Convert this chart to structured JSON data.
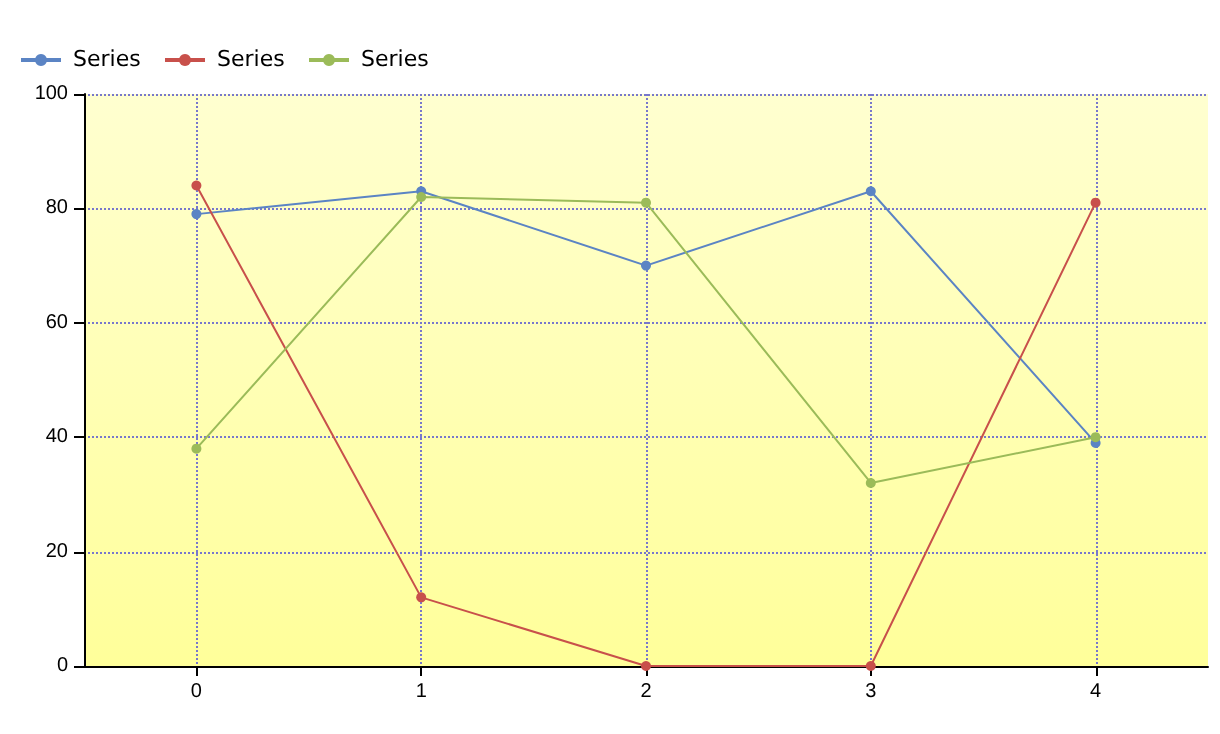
{
  "chart_data": {
    "type": "line",
    "x": [
      0,
      1,
      2,
      3,
      4
    ],
    "series": [
      {
        "name": "Series",
        "color": "#5b84c4",
        "values": [
          79,
          83,
          70,
          83,
          39
        ]
      },
      {
        "name": "Series",
        "color": "#c8504b",
        "values": [
          84,
          12,
          0,
          0,
          81
        ]
      },
      {
        "name": "Series",
        "color": "#9bbb59",
        "values": [
          38,
          82,
          81,
          32,
          40
        ]
      }
    ],
    "xlim": [
      -0.5,
      4.5
    ],
    "xticks": [
      0,
      1,
      2,
      3,
      4
    ],
    "ylim": [
      0,
      100
    ],
    "yticks": [
      0,
      20,
      40,
      60,
      80,
      100
    ],
    "grid": true,
    "legend": "top left",
    "marker": "circle",
    "line_style": "solid"
  }
}
